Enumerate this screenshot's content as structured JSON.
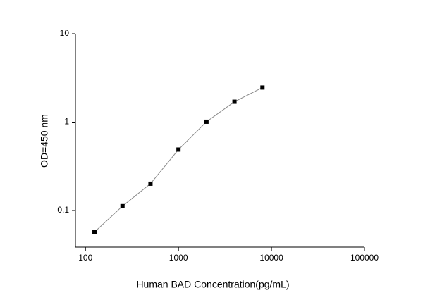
{
  "chart_data": {
    "type": "line",
    "x_label": "Human BAD Concentration(pg/mL)",
    "y_label": "OD=450 nm",
    "x": [
      125,
      250,
      500,
      1000,
      2000,
      4000,
      8000
    ],
    "series": [
      {
        "name": null,
        "color": "#000000",
        "values": [
          0.057,
          0.112,
          0.201,
          0.489,
          1.01,
          1.7,
          2.46
        ]
      }
    ],
    "xlim": [
      78,
      100000
    ],
    "ylim": [
      0.0385,
      10
    ],
    "xticks": [
      100,
      1000,
      10000,
      100000
    ],
    "yticks": [
      0.1,
      1,
      10
    ],
    "x_log": true,
    "y_log": true,
    "line_color": "#888888"
  }
}
